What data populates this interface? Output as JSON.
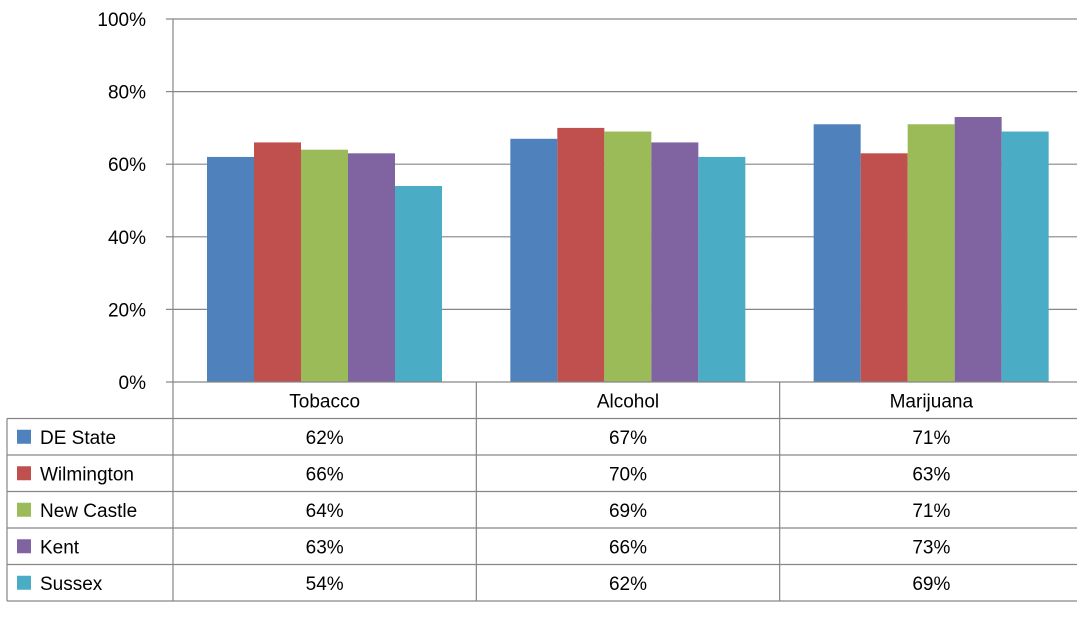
{
  "chart_data": {
    "type": "bar",
    "categories": [
      "Tobacco",
      "Alcohol",
      "Marijuana"
    ],
    "series": [
      {
        "name": "DE State",
        "color": "#4F81BD",
        "values": [
          62,
          67,
          71
        ],
        "labels": [
          "62%",
          "67%",
          "71%"
        ]
      },
      {
        "name": "Wilmington",
        "color": "#C0504D",
        "values": [
          66,
          70,
          63
        ],
        "labels": [
          "66%",
          "70%",
          "63%"
        ]
      },
      {
        "name": "New Castle",
        "color": "#9BBB59",
        "values": [
          64,
          69,
          71
        ],
        "labels": [
          "64%",
          "69%",
          "71%"
        ]
      },
      {
        "name": "Kent",
        "color": "#8064A2",
        "values": [
          63,
          66,
          73
        ],
        "labels": [
          "63%",
          "66%",
          "73%"
        ]
      },
      {
        "name": "Sussex",
        "color": "#4BACC6",
        "values": [
          54,
          62,
          69
        ],
        "labels": [
          "54%",
          "62%",
          "69%"
        ]
      }
    ],
    "ylim": [
      0,
      100
    ],
    "yticks": [
      {
        "value": 0,
        "label": "0%"
      },
      {
        "value": 20,
        "label": "20%"
      },
      {
        "value": 40,
        "label": "40%"
      },
      {
        "value": 60,
        "label": "60%"
      },
      {
        "value": 80,
        "label": "80%"
      },
      {
        "value": 100,
        "label": "100%"
      }
    ],
    "grid": true,
    "legend": "data-table"
  }
}
